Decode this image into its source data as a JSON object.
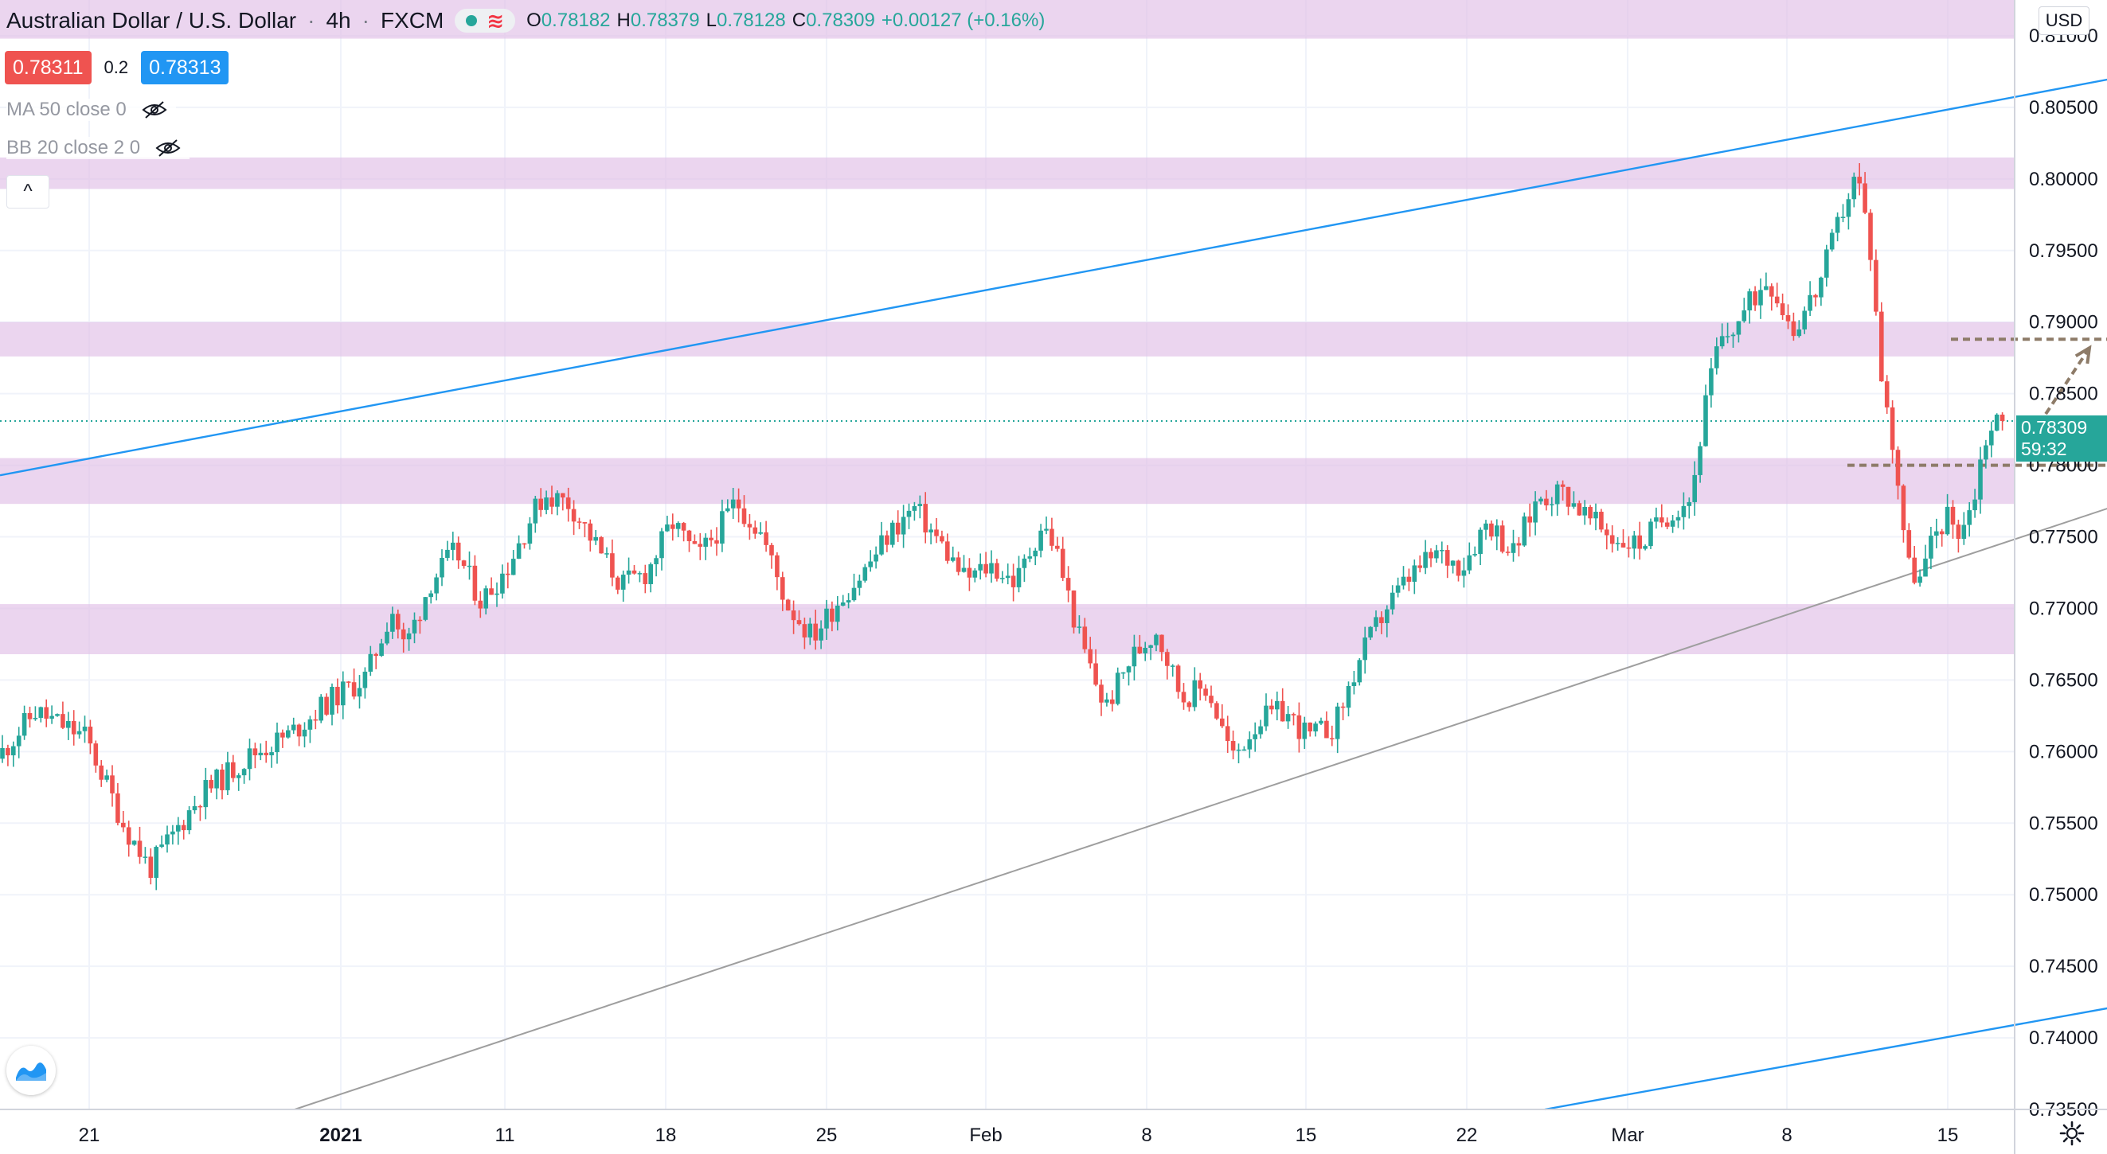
{
  "header": {
    "symbol": "Australian Dollar / U.S. Dollar",
    "interval": "4h",
    "exchange": "FXCM",
    "ohlc": [
      {
        "key": "O",
        "value": "0.78182"
      },
      {
        "key": "H",
        "value": "0.78379"
      },
      {
        "key": "L",
        "value": "0.78128"
      },
      {
        "key": "C",
        "value": "0.78309"
      }
    ],
    "change": "+0.00127 (+0.16%)"
  },
  "trade": {
    "sell_price": "0.78311",
    "spread": "0.2",
    "buy_price": "0.78313"
  },
  "indicators": [
    {
      "label": "MA 50 close 0"
    },
    {
      "label": "BB 20 close 2 0"
    }
  ],
  "currency": "USD",
  "current_price": {
    "price": "0.78309",
    "countdown": "59:32"
  },
  "icons": {
    "status_dot": "green-status-dot-icon",
    "wave": "wave-icon",
    "eye": "eye-off-icon",
    "collapse": "chevron-up-icon",
    "logo": "tradingview-logo-icon",
    "settings": "gear-icon"
  },
  "colors": {
    "up": "#26a69a",
    "down": "#ef5350",
    "zone": "#e1bee7",
    "channel_line": "#2196f3",
    "trend_line": "#9e9e9e",
    "projection": "#8d7b68",
    "price_line": "#26a69a"
  },
  "chart_data": {
    "type": "candlestick",
    "title": "Australian Dollar / U.S. Dollar",
    "interval": "4h",
    "y_range": [
      0.735,
      0.8125
    ],
    "y_ticks": [
      "0.81000",
      "0.80500",
      "0.80000",
      "0.79500",
      "0.79000",
      "0.78500",
      "0.78000",
      "0.77500",
      "0.77000",
      "0.76500",
      "0.76000",
      "0.75500",
      "0.75000",
      "0.74500",
      "0.74000",
      "0.73500"
    ],
    "x_ticks": [
      "21",
      "2021",
      "11",
      "18",
      "25",
      "Feb",
      "8",
      "15",
      "22",
      "Mar",
      "8",
      "15"
    ],
    "grid": true,
    "price_path": [
      [
        0,
        0.7595
      ],
      [
        24,
        0.7628
      ],
      [
        56,
        0.761
      ],
      [
        80,
        0.7548
      ],
      [
        96,
        0.7518
      ],
      [
        128,
        0.757
      ],
      [
        160,
        0.7598
      ],
      [
        184,
        0.7612
      ],
      [
        208,
        0.7635
      ],
      [
        232,
        0.7652
      ],
      [
        248,
        0.77
      ],
      [
        256,
        0.7672
      ],
      [
        272,
        0.7718
      ],
      [
        288,
        0.774
      ],
      [
        304,
        0.7705
      ],
      [
        320,
        0.7728
      ],
      [
        336,
        0.7765
      ],
      [
        344,
        0.778
      ],
      [
        360,
        0.7773
      ],
      [
        376,
        0.7744
      ],
      [
        392,
        0.7716
      ],
      [
        408,
        0.7725
      ],
      [
        424,
        0.776
      ],
      [
        440,
        0.7735
      ],
      [
        456,
        0.776
      ],
      [
        464,
        0.7775
      ],
      [
        480,
        0.7752
      ],
      [
        496,
        0.7703
      ],
      [
        512,
        0.768
      ],
      [
        528,
        0.7705
      ],
      [
        544,
        0.7725
      ],
      [
        560,
        0.7752
      ],
      [
        576,
        0.777
      ],
      [
        592,
        0.7746
      ],
      [
        608,
        0.772
      ],
      [
        624,
        0.773
      ],
      [
        640,
        0.7718
      ],
      [
        656,
        0.7758
      ],
      [
        664,
        0.7745
      ],
      [
        680,
        0.7678
      ],
      [
        696,
        0.763
      ],
      [
        712,
        0.7665
      ],
      [
        728,
        0.7685
      ],
      [
        744,
        0.7638
      ],
      [
        760,
        0.7645
      ],
      [
        776,
        0.7595
      ],
      [
        792,
        0.7622
      ],
      [
        808,
        0.7628
      ],
      [
        824,
        0.761
      ],
      [
        840,
        0.7618
      ],
      [
        856,
        0.7665
      ],
      [
        872,
        0.77
      ],
      [
        888,
        0.7723
      ],
      [
        904,
        0.7738
      ],
      [
        920,
        0.773
      ],
      [
        936,
        0.7762
      ],
      [
        952,
        0.7738
      ],
      [
        968,
        0.7778
      ],
      [
        984,
        0.7782
      ],
      [
        1000,
        0.7762
      ],
      [
        1016,
        0.7748
      ],
      [
        1032,
        0.7745
      ],
      [
        1048,
        0.7765
      ],
      [
        1064,
        0.7778
      ],
      [
        1072,
        0.7838
      ],
      [
        1080,
        0.788
      ],
      [
        1096,
        0.7905
      ],
      [
        1112,
        0.7932
      ],
      [
        1128,
        0.7895
      ],
      [
        1144,
        0.7925
      ],
      [
        1160,
        0.7982
      ],
      [
        1168,
        0.8004
      ],
      [
        1176,
        0.7955
      ],
      [
        1184,
        0.7855
      ],
      [
        1192,
        0.7805
      ],
      [
        1200,
        0.773
      ],
      [
        1208,
        0.772
      ],
      [
        1216,
        0.775
      ],
      [
        1224,
        0.7765
      ],
      [
        1232,
        0.7755
      ],
      [
        1240,
        0.777
      ],
      [
        1248,
        0.7818
      ],
      [
        1256,
        0.7831
      ]
    ],
    "horizontal_zones": [
      {
        "from": 0.8098,
        "to": 0.8126
      },
      {
        "from": 0.7993,
        "to": 0.8015
      },
      {
        "from": 0.7876,
        "to": 0.79
      },
      {
        "from": 0.7773,
        "to": 0.7805
      },
      {
        "from": 0.7668,
        "to": 0.7703
      }
    ],
    "channel_upper": [
      [
        0,
        0.7793
      ],
      [
        1350,
        0.8075
      ]
    ],
    "channel_lower": [
      [
        970,
        0.735
      ],
      [
        1370,
        0.743
      ]
    ],
    "trend_line": [
      [
        185,
        0.735
      ],
      [
        1492,
        0.7832
      ]
    ],
    "levels": [
      {
        "price": 0.7888,
        "from": 1225,
        "to": 1440
      },
      {
        "price": 0.78,
        "from": 1160,
        "to": 1405
      }
    ],
    "projection_arrow": [
      [
        1268,
        0.7808
      ],
      [
        1312,
        0.7882
      ]
    ],
    "current_price": 0.78309
  }
}
